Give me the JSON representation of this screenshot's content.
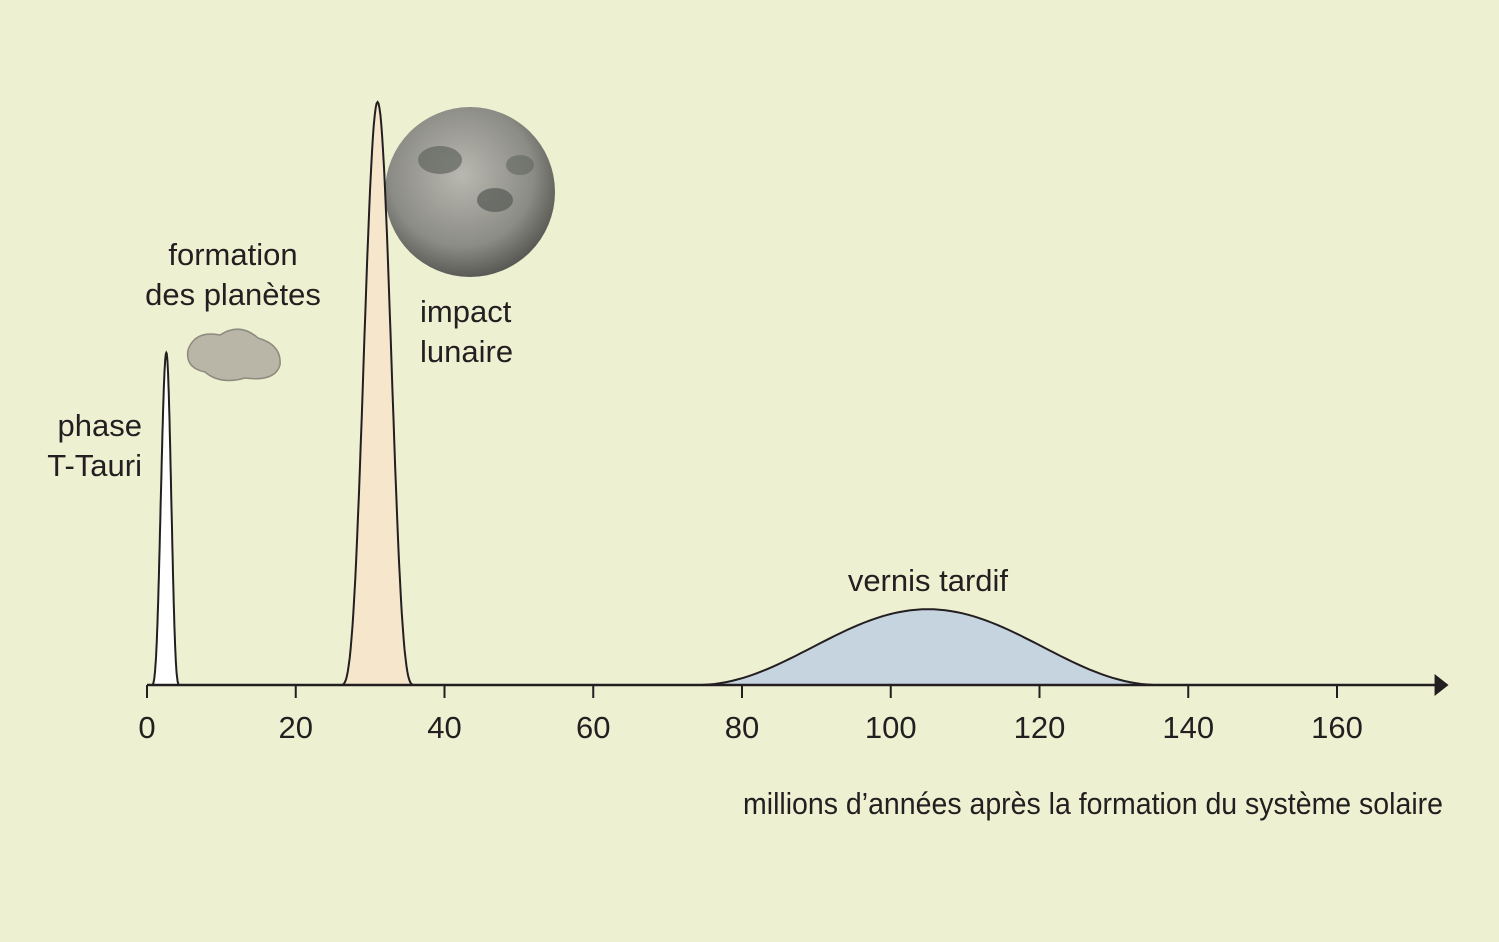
{
  "chart_data": {
    "type": "peaks",
    "x_label": "millions d’années après la formation du système solaire",
    "xlim": [
      0,
      175
    ],
    "xticks": [
      0,
      20,
      40,
      60,
      80,
      100,
      120,
      140,
      160
    ],
    "ylim": [
      0,
      100
    ],
    "annotations": [
      {
        "text": [
          "formation",
          "des planètes"
        ]
      }
    ],
    "series": [
      {
        "name": [
          "phase",
          "T-Tauri"
        ],
        "color": "#ffffff",
        "start": 0.6,
        "peak": 2.6,
        "end": 4.4,
        "height": 57
      },
      {
        "name": [
          "impact",
          "lunaire"
        ],
        "color": "#f6e6cc",
        "start": 26,
        "peak": 31,
        "end": 36,
        "height": 100
      },
      {
        "name": [
          "vernis tardif"
        ],
        "color": "#c6d4e0",
        "start": 74,
        "peak": 105,
        "end": 136,
        "height": 13
      }
    ]
  }
}
